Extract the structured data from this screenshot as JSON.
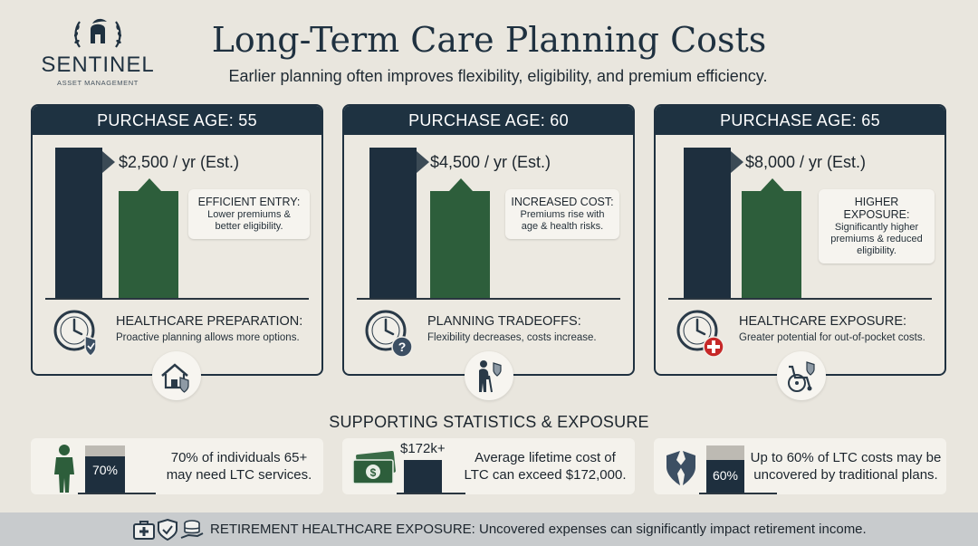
{
  "brand": {
    "name": "SENTINEL",
    "tagline": "ASSET MANAGEMENT"
  },
  "header": {
    "title": "Long-Term Care Planning Costs",
    "subtitle": "Earlier planning often improves flexibility, eligibility, and premium efficiency."
  },
  "cards": [
    {
      "heading": "PURCHASE AGE: 55",
      "price": "$2,500 / yr (Est.)",
      "callout_title": "EFFICIENT ENTRY:",
      "callout_text": "Lower premiums & better eligibility.",
      "footer_title": "HEALTHCARE PREPARATION:",
      "footer_text": "Proactive planning allows more options.",
      "footer_icon": "clock-shield-icon",
      "below_icon": "house-shield-icon"
    },
    {
      "heading": "PURCHASE AGE: 60",
      "price": "$4,500 / yr (Est.)",
      "callout_title": "INCREASED COST:",
      "callout_text": "Premiums rise with age & health risks.",
      "footer_title": "PLANNING TRADEOFFS:",
      "footer_text": "Flexibility decreases, costs increase.",
      "footer_icon": "clock-question-icon",
      "below_icon": "elderly-person-shield-icon"
    },
    {
      "heading": "PURCHASE AGE: 65",
      "price": "$8,000 / yr (Est.)",
      "callout_title": "HIGHER EXPOSURE:",
      "callout_text": "Significantly higher premiums & reduced eligibility.",
      "footer_title": "HEALTHCARE EXPOSURE:",
      "footer_text": "Greater potential for out-of-pocket costs.",
      "footer_icon": "clock-medical-cross-icon",
      "below_icon": "wheelchair-shield-icon"
    }
  ],
  "support": {
    "title": "SUPPORTING STATISTICS & EXPOSURE",
    "stats": [
      {
        "bar_label": "70%",
        "fill_fraction": 0.7,
        "text": "70% of individuals 65+ may need LTC services.",
        "icon": "person-icon"
      },
      {
        "bar_label": "$172k+",
        "text": "Average lifetime cost of LTC can exceed $172,000.",
        "icon": "money-icon"
      },
      {
        "bar_label": "60%",
        "fill_fraction": 0.6,
        "text": "Up to 60% of LTC costs may be uncovered by traditional plans.",
        "icon": "broken-shield-icon"
      }
    ]
  },
  "banner": {
    "text": "RETIREMENT HEALTHCARE EXPOSURE: Uncovered expenses can significantly impact retirement income.",
    "icons": [
      "medical-kit-icon",
      "shield-check-icon",
      "coins-hand-icon"
    ]
  },
  "colors": {
    "navy": "#1e2f3e",
    "green": "#2d5e3b",
    "background": "#e9e6de",
    "alert_red": "#c62828"
  }
}
